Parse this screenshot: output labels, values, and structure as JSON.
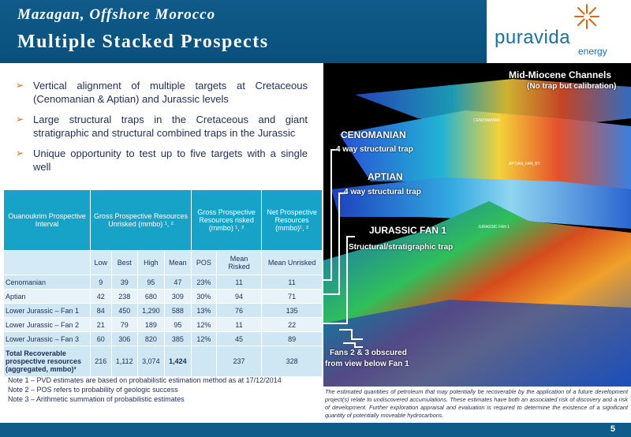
{
  "header": {
    "subtitle": "Mazagan, Offshore Morocco",
    "title": "Multiple Stacked Prospects",
    "logo_word": "puravida",
    "logo_sub": "energy"
  },
  "bullets": [
    "Vertical alignment of multiple targets at Cretaceous (Cenomanian & Aptian) and Jurassic levels",
    "Large structural traps in the Cretaceous and giant stratigraphic and structural combined traps in the Jurassic",
    "Unique opportunity to test up to five targets with a single well"
  ],
  "bullet_marker": "➢",
  "table": {
    "col1": "Ouanoukrim Prospective Interval",
    "col2": "Gross Prospective Resources Unrisked (mmbo) ¹, ²",
    "col3": "Gross Prospective Resources risked (mmbo) ¹, ²",
    "col4": "Net Prospective Resources (mmbo)¹, ²",
    "sub": [
      "Low",
      "Best",
      "High",
      "Mean",
      "POS",
      "Mean Risked",
      "Mean Unrisked"
    ],
    "rows": [
      [
        "Cenomanian",
        "9",
        "39",
        "95",
        "47",
        "23%",
        "11",
        "11"
      ],
      [
        "Aptian",
        "42",
        "238",
        "680",
        "309",
        "30%",
        "94",
        "71"
      ],
      [
        "Lower Jurassic – Fan 1",
        "84",
        "450",
        "1,290",
        "588",
        "13%",
        "76",
        "135"
      ],
      [
        "Lower Jurassic – Fan 2",
        "21",
        "79",
        "189",
        "95",
        "12%",
        "11",
        "22"
      ],
      [
        "Lower Jurassic – Fan 3",
        "60",
        "306",
        "820",
        "385",
        "12%",
        "45",
        "89"
      ]
    ],
    "total": [
      "Total Recoverable prospective resources (aggregated, mmbo)³",
      "216",
      "1,112",
      "3,074",
      "1,424",
      "",
      "237",
      "328"
    ]
  },
  "notes": [
    "Note 1 – PVD estimates are based on probabilistic estimation method as at 17/12/2014",
    "Note 2 – POS refers to probability of geologic success",
    "Note 3 – Arithmetic summation of probabilistic estimates"
  ],
  "disclaimer": "The estimated quantities of petroleum that may potentially be recoverable by the application of a future development project(s) relate to undiscovered accumulations. These estimates have both an associated risk of discovery and a risk of development. Further exploration appraisal and evaluation is required to determine the existence of a significant quantity of potentially moveable hydrocarbons.",
  "seismic_labels": {
    "mid_miocene": "Mid-Miocene Channels",
    "mid_miocene_sub": "(No trap but calibration)",
    "cenomanian": "CENOMANIAN",
    "cenomanian_sub": "4 way structural trap",
    "aptian": "APTIAN",
    "aptian_sub": "4 way structural trap",
    "jurassic": "JURASSIC FAN 1",
    "jurassic_sub": "Structural/stratigraphic trap",
    "fans": "Fans 2 & 3 obscured",
    "fans_sub": "from view below Fan 1",
    "tiny1": "CENOMANIAN",
    "tiny2": "APTIAN_FAN_BT",
    "tiny3": "JURASSIC FAN 1"
  },
  "page_number": "5",
  "colors": {
    "header": "#0f5b8a",
    "table_head": "#17a2c8",
    "accent": "#d9690f"
  }
}
